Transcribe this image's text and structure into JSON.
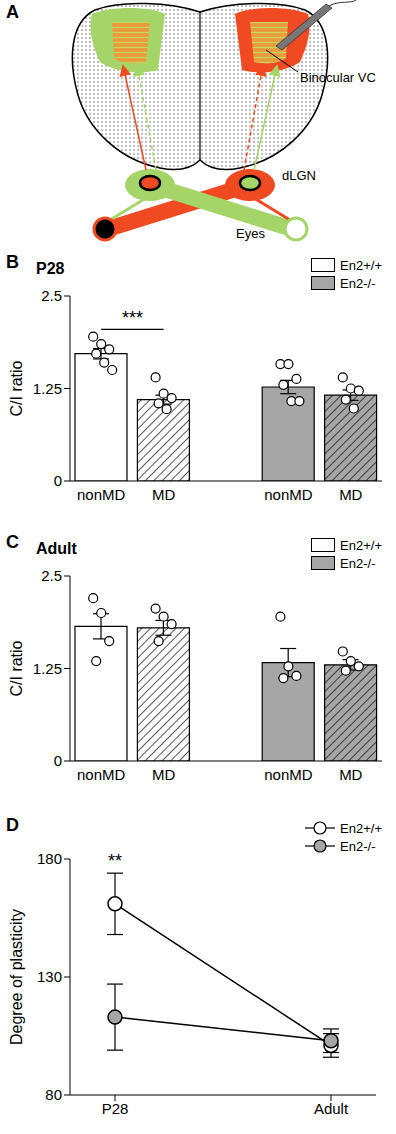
{
  "diagram": {
    "label": "A",
    "texts": {
      "cortex": "Binocular VC",
      "thalamus": "dLGN",
      "eyes": "Eyes"
    }
  },
  "chart_data": [
    {
      "panel": "B",
      "type": "bar",
      "title": "P28",
      "y_label": "C/I ratio",
      "categories": [
        "nonMD",
        "MD"
      ],
      "ylim": [
        0,
        2.5
      ],
      "yticks": [
        0,
        1.25,
        2.5
      ],
      "legend": "upper right",
      "series": [
        {
          "name": "En2+/+",
          "color": "#ffffff",
          "values": [
            1.72,
            1.1
          ],
          "errors": [
            0.07,
            0.06
          ],
          "points": [
            [
              1.95,
              1.85,
              1.78,
              1.72,
              1.6,
              1.5
            ],
            [
              1.4,
              1.18,
              1.12,
              1.05,
              0.97
            ]
          ]
        },
        {
          "name": "En2-/-",
          "color": "#a6a6a6",
          "values": [
            1.27,
            1.16
          ],
          "errors": [
            0.09,
            0.07
          ],
          "points": [
            [
              1.58,
              1.58,
              1.38,
              1.3,
              1.08,
              1.08
            ],
            [
              1.4,
              1.25,
              1.22,
              1.1,
              0.98
            ]
          ]
        }
      ],
      "annotations": [
        {
          "text": "***",
          "series": "En2+/+",
          "between": [
            "nonMD",
            "MD"
          ]
        }
      ]
    },
    {
      "panel": "C",
      "type": "bar",
      "title": "Adult",
      "y_label": "C/I ratio",
      "categories": [
        "nonMD",
        "MD"
      ],
      "ylim": [
        0,
        2.5
      ],
      "yticks": [
        0,
        1.25,
        2.5
      ],
      "legend": "upper right",
      "series": [
        {
          "name": "En2+/+",
          "color": "#ffffff",
          "values": [
            1.82,
            1.8
          ],
          "errors": [
            0.17,
            0.1
          ],
          "points": [
            [
              2.2,
              2.0,
              1.62,
              1.35
            ],
            [
              2.06,
              1.95,
              1.85,
              1.62
            ]
          ]
        },
        {
          "name": "En2-/-",
          "color": "#a6a6a6",
          "values": [
            1.33,
            1.3
          ],
          "errors": [
            0.19,
            0.07
          ],
          "points": [
            [
              1.95,
              1.28,
              1.15,
              1.12
            ],
            [
              1.48,
              1.35,
              1.28,
              1.22
            ]
          ]
        }
      ],
      "annotations": []
    },
    {
      "panel": "D",
      "type": "line",
      "y_label": "Degree of plasticity",
      "categories": [
        "P28",
        "Adult"
      ],
      "ylim": [
        80,
        180
      ],
      "yticks": [
        80,
        130,
        180
      ],
      "legend": "upper right",
      "series": [
        {
          "name": "En2+/+",
          "color": "#ffffff",
          "marker": "circle",
          "values": [
            161,
            101
          ],
          "errors": [
            13,
            5
          ]
        },
        {
          "name": "En2-/-",
          "color": "#a6a6a6",
          "marker": "circle",
          "values": [
            113,
            103
          ],
          "errors": [
            14,
            5
          ]
        }
      ],
      "annotations": [
        {
          "text": "**",
          "x": "P28"
        }
      ]
    }
  ]
}
